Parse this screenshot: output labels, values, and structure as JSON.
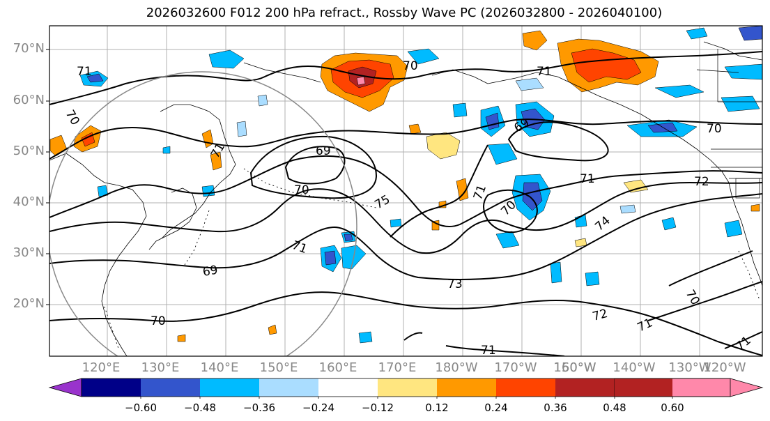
{
  "title": "2026032600 F012 200 hPa refract., Rossby Wave PC (2026032800 - 2026040100)",
  "lat_labels": [
    "70°N",
    "60°N",
    "50°N",
    "40°N",
    "30°N",
    "20°N"
  ],
  "lon_labels": [
    "120°E",
    "130°E",
    "140°E",
    "150°E",
    "160°E",
    "170°E",
    "180°W",
    "170°W",
    "160°W",
    "150°W",
    "140°W",
    "130°W",
    "120°W"
  ],
  "colorbar": {
    "colors": [
      "#9933cc",
      "#000088",
      "#3355cc",
      "#00bbff",
      "#aaddff",
      "#ffffff",
      "#ffe680",
      "#ff9900",
      "#ff4400",
      "#b22222",
      "#ff88aa"
    ],
    "ticks": [
      "−0.60",
      "−0.48",
      "−0.36",
      "−0.24",
      "−0.12",
      "0.12",
      "0.24",
      "0.36",
      "0.48",
      "0.60"
    ]
  },
  "contour_labels": [
    "71",
    "70",
    "71",
    "70",
    "71",
    "69",
    "69",
    "70",
    "75",
    "71",
    "70",
    "70",
    "71",
    "74",
    "72",
    "71",
    "69",
    "73",
    "72",
    "70",
    "70",
    "71",
    "71",
    "71"
  ]
}
